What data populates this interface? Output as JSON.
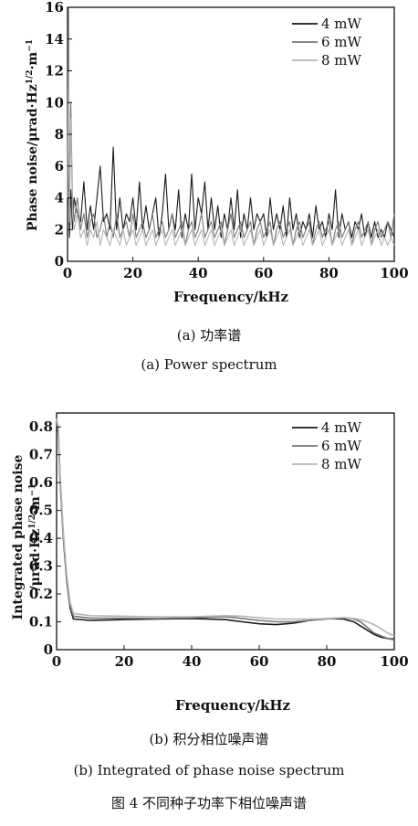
{
  "chart_data": [
    {
      "type": "line",
      "panel": "a",
      "xlabel": "Frequency/kHz",
      "ylabel": "Phase noise/μrad·Hz^1/2·m^-1",
      "ylabel_parts": {
        "main": "Phase noise/μrad·Hz",
        "sup1": "1/2",
        "mid": "·m",
        "sup2": "−1"
      },
      "xlim": [
        0,
        100
      ],
      "ylim": [
        0,
        16
      ],
      "xticks": [
        0,
        20,
        40,
        60,
        80,
        100
      ],
      "yticks": [
        0,
        2,
        4,
        6,
        8,
        10,
        12,
        14,
        16
      ],
      "legend_position": "top-right",
      "series": [
        {
          "name": "4 mW",
          "color": "#1a1a1a",
          "x": [
            0,
            0.3,
            0.6,
            1,
            1.5,
            2,
            3,
            4,
            5,
            6,
            7,
            8,
            9,
            10,
            11,
            12,
            13,
            14,
            15,
            16,
            17,
            18,
            19,
            20,
            21,
            22,
            23,
            24,
            25,
            26,
            27,
            28,
            29,
            30,
            31,
            32,
            33,
            34,
            35,
            36,
            37,
            38,
            39,
            40,
            41,
            42,
            43,
            44,
            45,
            46,
            47,
            48,
            49,
            50,
            51,
            52,
            53,
            54,
            55,
            56,
            57,
            58,
            59,
            60,
            61,
            62,
            63,
            64,
            65,
            66,
            67,
            68,
            69,
            70,
            71,
            72,
            73,
            74,
            75,
            76,
            77,
            78,
            79,
            80,
            81,
            82,
            83,
            84,
            85,
            86,
            87,
            88,
            89,
            90,
            91,
            92,
            93,
            94,
            95,
            96,
            97,
            98,
            99,
            100
          ],
          "y": [
            3,
            7,
            1.5,
            4.5,
            2,
            4,
            3,
            2.5,
            5,
            2,
            3.5,
            2,
            4,
            6,
            2.5,
            3,
            2,
            7.2,
            2,
            4,
            2,
            3,
            2.5,
            4,
            2,
            5,
            2,
            3.5,
            2,
            3,
            4,
            1.5,
            3,
            5.5,
            2,
            3,
            2,
            4.5,
            1.5,
            3,
            2,
            5.5,
            2,
            4,
            3,
            5,
            2,
            4,
            2,
            3.5,
            1.5,
            3,
            2,
            4,
            2,
            4.5,
            1.5,
            3,
            2,
            4,
            2,
            3,
            2.5,
            3,
            1.5,
            4,
            2,
            3,
            2,
            3.5,
            1.5,
            4,
            2,
            3,
            1.5,
            2.5,
            2,
            3,
            1.5,
            3.5,
            2,
            2.5,
            1.5,
            3,
            2,
            4.5,
            1.5,
            3,
            2,
            2.5,
            1.5,
            2.5,
            2,
            3,
            1.5,
            2.5,
            1.5,
            2.5,
            1.5,
            2,
            1.5,
            2.5,
            2,
            1.5
          ]
        },
        {
          "name": "6 mW",
          "color": "#777777",
          "x": [
            0,
            0.3,
            0.6,
            1,
            1.5,
            2,
            3,
            4,
            5,
            6,
            7,
            8,
            9,
            10,
            11,
            12,
            13,
            14,
            15,
            16,
            17,
            18,
            19,
            20,
            21,
            22,
            23,
            24,
            25,
            26,
            27,
            28,
            29,
            30,
            31,
            32,
            33,
            34,
            35,
            36,
            37,
            38,
            39,
            40,
            41,
            42,
            43,
            44,
            45,
            46,
            47,
            48,
            49,
            50,
            51,
            52,
            53,
            54,
            55,
            56,
            57,
            58,
            59,
            60,
            61,
            62,
            63,
            64,
            65,
            66,
            67,
            68,
            69,
            70,
            71,
            72,
            73,
            74,
            75,
            76,
            77,
            78,
            79,
            80,
            81,
            82,
            83,
            84,
            85,
            86,
            87,
            88,
            89,
            90,
            91,
            92,
            93,
            94,
            95,
            96,
            97,
            98,
            99,
            100
          ],
          "y": [
            5,
            16,
            3,
            10,
            4,
            2.5,
            4,
            2,
            3,
            1.5,
            2.5,
            3,
            1.5,
            2,
            3,
            1.5,
            2.5,
            1.5,
            3,
            1.5,
            2,
            2.5,
            1.5,
            3,
            1.5,
            2,
            2.5,
            1.5,
            2,
            3,
            1.5,
            2,
            2.5,
            1.5,
            2,
            3,
            1.5,
            2,
            2.5,
            1,
            2,
            2.5,
            1.5,
            2,
            3,
            1.5,
            2,
            2.5,
            1.5,
            2,
            2.5,
            1,
            2,
            3,
            1.5,
            2,
            2.5,
            1.5,
            2,
            2.5,
            1,
            2,
            2.5,
            1.5,
            2,
            2.5,
            1,
            2,
            2.5,
            1.5,
            2,
            2.5,
            1,
            2,
            2.5,
            1.5,
            2,
            2.5,
            1,
            2,
            2.5,
            1.5,
            2,
            2.5,
            1,
            2,
            2.5,
            1.5,
            2,
            2.5,
            1,
            2,
            2.5,
            1.5,
            2,
            2.5,
            1,
            2,
            2.5,
            1.5,
            2,
            2.5,
            1.5,
            3
          ]
        },
        {
          "name": "8 mW",
          "color": "#b5b5b5",
          "x": [
            0,
            0.3,
            0.6,
            1,
            1.5,
            2,
            3,
            4,
            5,
            6,
            7,
            8,
            9,
            10,
            11,
            12,
            13,
            14,
            15,
            16,
            17,
            18,
            19,
            20,
            21,
            22,
            23,
            24,
            25,
            26,
            27,
            28,
            29,
            30,
            31,
            32,
            33,
            34,
            35,
            36,
            37,
            38,
            39,
            40,
            41,
            42,
            43,
            44,
            45,
            46,
            47,
            48,
            49,
            50,
            51,
            52,
            53,
            54,
            55,
            56,
            57,
            58,
            59,
            60,
            61,
            62,
            63,
            64,
            65,
            66,
            67,
            68,
            69,
            70,
            71,
            72,
            73,
            74,
            75,
            76,
            77,
            78,
            79,
            80,
            81,
            82,
            83,
            84,
            85,
            86,
            87,
            88,
            89,
            90,
            91,
            92,
            93,
            94,
            95,
            96,
            97,
            98,
            99,
            100
          ],
          "y": [
            4,
            12,
            2.5,
            9,
            3,
            2,
            3,
            1.5,
            2,
            1,
            2,
            1.5,
            2.5,
            1,
            2,
            1.5,
            1,
            2,
            1.5,
            1,
            2,
            1,
            1.5,
            2,
            1,
            1.5,
            2,
            1,
            1.5,
            2,
            1,
            1.5,
            2,
            1,
            1.5,
            2,
            1,
            1.5,
            2,
            1,
            1.5,
            2,
            1,
            1.5,
            2,
            1,
            1.5,
            2,
            1,
            1.5,
            2,
            1,
            1.5,
            2,
            1,
            1.5,
            2,
            1,
            1.5,
            2,
            1,
            1.5,
            2,
            1,
            1.5,
            2,
            1,
            1.5,
            2,
            1,
            1.5,
            2,
            1,
            1.5,
            2,
            1,
            1.5,
            2,
            1,
            1.5,
            2,
            1,
            1.5,
            2,
            1,
            1.5,
            2,
            1,
            1.5,
            2,
            1,
            1.5,
            2,
            1,
            1.5,
            2,
            1,
            1.5,
            2,
            1,
            1.5,
            1,
            1.5,
            1
          ]
        }
      ]
    },
    {
      "type": "line",
      "panel": "b",
      "xlabel": "Frequency/kHz",
      "ylabel": "Integrated phase noise /μrad·Hz^1/2·m^-1",
      "ylabel_line1": "Integrated phase noise",
      "ylabel_parts": {
        "main": "/μrad·Hz",
        "sup1": "1/2",
        "mid": "·m",
        "sup2": "−1"
      },
      "xlim": [
        0,
        100
      ],
      "ylim": [
        0,
        0.85
      ],
      "xticks": [
        0,
        20,
        40,
        60,
        80,
        100
      ],
      "yticks": [
        0,
        0.1,
        0.2,
        0.3,
        0.4,
        0.5,
        0.6,
        0.7,
        0.8
      ],
      "legend_position": "top-right",
      "series": [
        {
          "name": "4 mW",
          "color": "#1a1a1a",
          "x": [
            0,
            0.5,
            1,
            2,
            3,
            4,
            5,
            10,
            20,
            30,
            40,
            50,
            55,
            60,
            65,
            70,
            75,
            80,
            85,
            88,
            90,
            92,
            94,
            96,
            98,
            100
          ],
          "y": [
            0.8,
            0.78,
            0.62,
            0.4,
            0.25,
            0.15,
            0.11,
            0.105,
            0.108,
            0.11,
            0.112,
            0.108,
            0.1,
            0.093,
            0.09,
            0.095,
            0.105,
            0.112,
            0.11,
            0.1,
            0.085,
            0.07,
            0.055,
            0.045,
            0.04,
            0.038
          ]
        },
        {
          "name": "6 mW",
          "color": "#777777",
          "x": [
            0,
            0.5,
            1,
            2,
            3,
            4,
            5,
            10,
            20,
            30,
            40,
            50,
            55,
            60,
            65,
            70,
            75,
            80,
            85,
            88,
            90,
            92,
            94,
            96,
            98,
            100
          ],
          "y": [
            0.82,
            0.79,
            0.63,
            0.41,
            0.26,
            0.16,
            0.12,
            0.113,
            0.113,
            0.112,
            0.115,
            0.118,
            0.112,
            0.105,
            0.1,
            0.1,
            0.105,
            0.11,
            0.115,
            0.11,
            0.1,
            0.08,
            0.06,
            0.05,
            0.04,
            0.035
          ]
        },
        {
          "name": "8 mW",
          "color": "#b5b5b5",
          "x": [
            0,
            0.5,
            1,
            2,
            3,
            4,
            5,
            10,
            20,
            30,
            40,
            50,
            55,
            60,
            65,
            70,
            75,
            80,
            85,
            88,
            90,
            92,
            94,
            96,
            98,
            100
          ],
          "y": [
            0.83,
            0.8,
            0.64,
            0.42,
            0.27,
            0.17,
            0.13,
            0.122,
            0.12,
            0.118,
            0.118,
            0.122,
            0.12,
            0.115,
            0.11,
            0.11,
            0.11,
            0.112,
            0.115,
            0.112,
            0.108,
            0.1,
            0.09,
            0.075,
            0.06,
            0.05
          ]
        }
      ]
    }
  ],
  "captions": {
    "a_zh": "(a) 功率谱",
    "a_en": "(a) Power spectrum",
    "b_zh": "(b) 积分相位噪声谱",
    "b_en": "(b) Integrated of phase noise spectrum",
    "figure": "图 4 不同种子功率下相位噪声谱"
  }
}
